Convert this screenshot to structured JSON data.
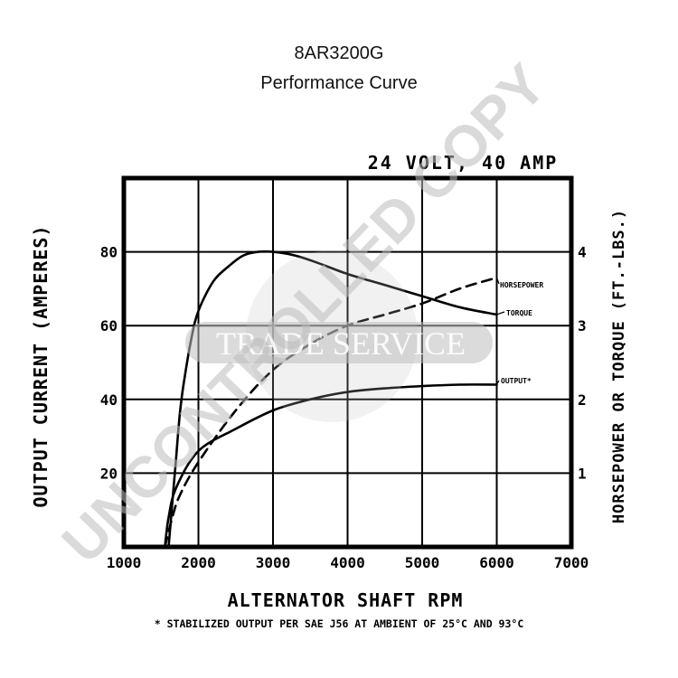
{
  "chart_data": {
    "type": "line",
    "title": "8AR3200G",
    "subtitle": "Performance Curve",
    "rating_label": "24 VOLT, 40 AMP",
    "xlabel": "ALTERNATOR SHAFT RPM",
    "ylabel_left": "OUTPUT CURRENT (AMPERES)",
    "ylabel_right": "HORSEPOWER OR TORQUE (FT.-LBS.)",
    "footnote": "* STABILIZED OUTPUT PER SAE J56 AT AMBIENT OF 25°C AND 93°C",
    "x_ticks": [
      "1000",
      "2000",
      "3000",
      "4000",
      "5000",
      "6000",
      "7000"
    ],
    "y_left_ticks": [
      "20",
      "40",
      "60",
      "80"
    ],
    "y_right_ticks": [
      "1",
      "2",
      "3",
      "4"
    ],
    "xlim": [
      1000,
      7000
    ],
    "ylim_left": [
      0,
      100
    ],
    "ylim_right": [
      0,
      5
    ],
    "grid": true,
    "series": [
      {
        "name": "OUTPUT",
        "axis": "left",
        "style": "solid",
        "x": [
          1600,
          1650,
          1700,
          1750,
          1800,
          1900,
          2000,
          2200,
          2400,
          2600,
          2800,
          3000,
          3300,
          3600,
          4000,
          4500,
          5000,
          5500,
          6000
        ],
        "y": [
          0,
          12,
          24,
          36,
          44,
          56,
          64,
          72,
          76,
          79,
          80,
          80,
          79,
          77,
          74,
          71,
          68,
          65,
          63
        ]
      },
      {
        "name": "HORSEPOWER",
        "axis": "right",
        "style": "dashed",
        "x": [
          1550,
          1650,
          1750,
          2000,
          2500,
          3000,
          3500,
          4000,
          4500,
          5000,
          5500,
          6000
        ],
        "y": [
          0,
          0.4,
          0.7,
          1.15,
          1.85,
          2.4,
          2.75,
          3.0,
          3.15,
          3.3,
          3.5,
          3.65
        ]
      },
      {
        "name": "TORQUE",
        "axis": "right",
        "style": "solid",
        "x": [
          1550,
          1600,
          1700,
          2000,
          2500,
          3000,
          3500,
          4000,
          4500,
          5000,
          5500,
          6000
        ],
        "y": [
          0,
          0.4,
          0.8,
          1.3,
          1.6,
          1.85,
          2.0,
          2.1,
          2.15,
          2.18,
          2.2,
          2.2
        ]
      }
    ],
    "series_labels": {
      "horsepower": "HORSEPOWER",
      "torque": "TORQUE",
      "output": "OUTPUT*"
    }
  },
  "watermark": {
    "diagonal_text": "UNCONTROLLED COPY",
    "band_text": "TRADE SERVICE",
    "color": "#bdbdbd"
  }
}
